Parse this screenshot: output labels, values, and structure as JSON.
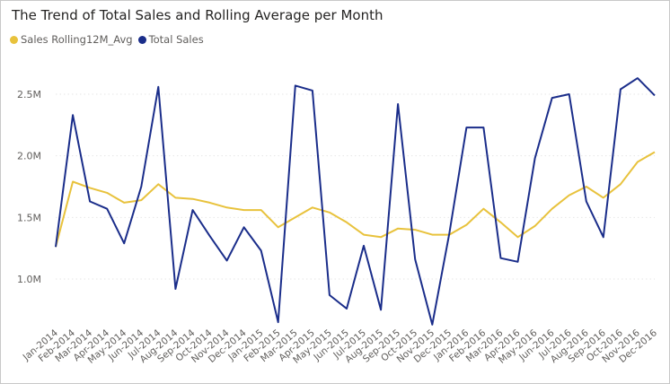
{
  "chart_data": {
    "type": "line",
    "title": "The Trend of Total Sales and Rolling Average per Month",
    "xlabel": "",
    "ylabel": "",
    "ylim": [
      0.6,
      2.7
    ],
    "y_ticks": [
      1.0,
      1.5,
      2.0,
      2.5
    ],
    "y_tick_labels": [
      "1.0M",
      "1.5M",
      "2.0M",
      "2.5M"
    ],
    "y_unit": "M",
    "grid": true,
    "legend_position": "top-left",
    "categories": [
      "Jan-2014",
      "Feb-2014",
      "Mar-2014",
      "Apr-2014",
      "May-2014",
      "Jun-2014",
      "Jul-2014",
      "Aug-2014",
      "Sep-2014",
      "Oct-2014",
      "Nov-2014",
      "Dec-2014",
      "Jan-2015",
      "Feb-2015",
      "Mar-2015",
      "Apr-2015",
      "May-2015",
      "Jun-2015",
      "Jul-2015",
      "Aug-2015",
      "Sep-2015",
      "Oct-2015",
      "Nov-2015",
      "Dec-2015",
      "Jan-2016",
      "Feb-2016",
      "Mar-2016",
      "Apr-2016",
      "May-2016",
      "Jun-2016",
      "Jul-2016",
      "Aug-2016",
      "Sep-2016",
      "Oct-2016",
      "Nov-2016",
      "Dec-2016"
    ],
    "series": [
      {
        "name": "Sales Rolling12M_Avg",
        "color": "#E8C23C",
        "values": [
          1.26,
          1.79,
          1.74,
          1.7,
          1.62,
          1.64,
          1.77,
          1.66,
          1.65,
          1.62,
          1.58,
          1.56,
          1.56,
          1.42,
          1.5,
          1.58,
          1.54,
          1.46,
          1.36,
          1.34,
          1.41,
          1.4,
          1.36,
          1.36,
          1.44,
          1.57,
          1.46,
          1.34,
          1.43,
          1.57,
          1.68,
          1.75,
          1.66,
          1.77,
          1.95,
          2.03
        ]
      },
      {
        "name": "Total Sales",
        "color": "#1A2D8A",
        "values": [
          1.26,
          2.33,
          1.63,
          1.57,
          1.29,
          1.75,
          2.56,
          0.92,
          1.56,
          1.35,
          1.15,
          1.42,
          1.23,
          0.65,
          2.57,
          2.53,
          0.87,
          0.76,
          1.27,
          0.75,
          2.42,
          1.16,
          0.63,
          1.37,
          2.23,
          2.23,
          1.17,
          1.14,
          1.98,
          2.47,
          2.5,
          1.63,
          1.34,
          2.54,
          2.63,
          2.49
        ]
      }
    ]
  }
}
